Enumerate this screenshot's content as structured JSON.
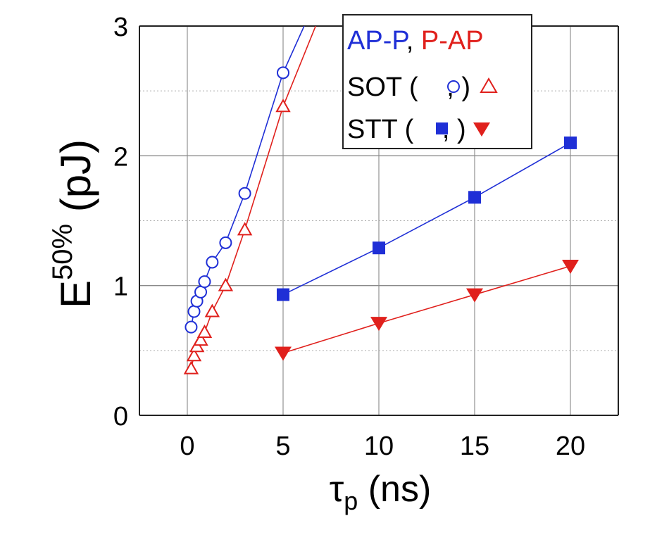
{
  "chart_data": {
    "type": "scatter",
    "xlabel_main": "τ",
    "xlabel_sub": "p",
    "xlabel_unit": " (ns)",
    "ylabel_main": "E",
    "ylabel_sup": "50%",
    "ylabel_unit": " (pJ)",
    "xlim": [
      -2.5,
      22.5
    ],
    "ylim": [
      0,
      3
    ],
    "xticks": [
      0,
      5,
      10,
      15,
      20
    ],
    "yticks": [
      0,
      1,
      2,
      3
    ],
    "grid": true,
    "legend": {
      "placement": "top-right",
      "row1": [
        {
          "text": "AP-P",
          "color": "#1f2fd6"
        },
        {
          "text": ", ",
          "color": "#000000"
        },
        {
          "text": "P-AP",
          "color": "#e0201c"
        }
      ],
      "row2_label": "SOT (",
      "row3_label": "STT (",
      "sep": ", ",
      "close": ")"
    },
    "series": [
      {
        "key": "sot_ap_p",
        "color": "#1f2fd6",
        "marker": "circle-open",
        "x": [
          0.2,
          0.35,
          0.5,
          0.7,
          0.9,
          1.3,
          2.0,
          3.0,
          5.0,
          6.1
        ],
        "y": [
          0.68,
          0.8,
          0.88,
          0.95,
          1.03,
          1.18,
          1.33,
          1.71,
          2.64,
          3.0
        ]
      },
      {
        "key": "sot_p_ap",
        "color": "#e0201c",
        "marker": "triangle-open",
        "x": [
          0.2,
          0.35,
          0.5,
          0.7,
          0.9,
          1.3,
          2.0,
          3.0,
          5.0,
          6.7
        ],
        "y": [
          0.36,
          0.46,
          0.53,
          0.58,
          0.64,
          0.8,
          1.0,
          1.43,
          2.38,
          3.0
        ]
      },
      {
        "key": "stt_ap_p",
        "color": "#1f2fd6",
        "marker": "square-filled",
        "x": [
          5,
          10,
          15,
          20
        ],
        "y": [
          0.93,
          1.29,
          1.68,
          2.1
        ]
      },
      {
        "key": "stt_p_ap",
        "color": "#e0201c",
        "marker": "triangle-down-filled",
        "x": [
          5,
          10,
          15,
          20
        ],
        "y": [
          0.48,
          0.71,
          0.93,
          1.15
        ]
      }
    ]
  }
}
